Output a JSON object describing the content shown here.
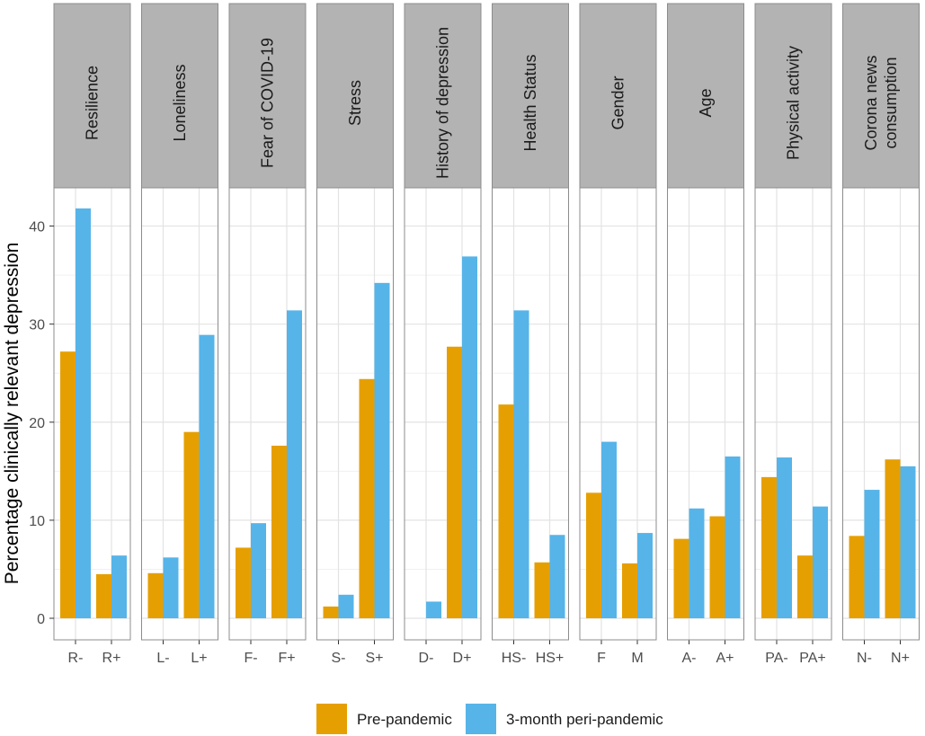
{
  "chart_data": {
    "type": "bar",
    "title": "",
    "xlabel": "",
    "ylabel": "Percentage clinically relevant depression",
    "ylim": [
      -2.2,
      43.9
    ],
    "yticks": [
      "0",
      "10",
      "20",
      "30",
      "40"
    ],
    "ytick_values": [
      0,
      10,
      20,
      30,
      40
    ],
    "grid": true,
    "legend_position": "bottom",
    "series": [
      {
        "name": "Pre-pandemic",
        "color": "#E69F00"
      },
      {
        "name": "3-month peri-pandemic",
        "color": "#56B4E9"
      }
    ],
    "facets": [
      {
        "label": "Resilience",
        "categories": [
          "R-",
          "R+"
        ],
        "pre": [
          27.2,
          4.5
        ],
        "peri": [
          41.8,
          6.4
        ]
      },
      {
        "label": "Loneliness",
        "categories": [
          "L-",
          "L+"
        ],
        "pre": [
          4.6,
          19.0
        ],
        "peri": [
          6.2,
          28.9
        ]
      },
      {
        "label": "Fear of COVID-19",
        "categories": [
          "F-",
          "F+"
        ],
        "pre": [
          7.2,
          17.6
        ],
        "peri": [
          9.7,
          31.4
        ]
      },
      {
        "label": "Stress",
        "categories": [
          "S-",
          "S+"
        ],
        "pre": [
          1.2,
          24.4
        ],
        "peri": [
          2.4,
          34.2
        ]
      },
      {
        "label": "History of depression",
        "categories": [
          "D-",
          "D+"
        ],
        "pre": [
          0.0,
          27.7
        ],
        "peri": [
          1.7,
          36.9
        ]
      },
      {
        "label": "Health Status",
        "categories": [
          "HS-",
          "HS+"
        ],
        "pre": [
          21.8,
          5.7
        ],
        "peri": [
          31.4,
          8.5
        ]
      },
      {
        "label": "Gender",
        "categories": [
          "F",
          "M"
        ],
        "pre": [
          12.8,
          5.6
        ],
        "peri": [
          18.0,
          8.7
        ]
      },
      {
        "label": "Age",
        "categories": [
          "A-",
          "A+"
        ],
        "pre": [
          8.1,
          10.4
        ],
        "peri": [
          11.2,
          16.5
        ]
      },
      {
        "label": "Physical activity",
        "categories": [
          "PA-",
          "PA+"
        ],
        "pre": [
          14.4,
          6.4
        ],
        "peri": [
          16.4,
          11.4
        ]
      },
      {
        "label": "Corona news\nconsumption",
        "categories": [
          "N-",
          "N+"
        ],
        "pre": [
          8.4,
          16.2
        ],
        "peri": [
          13.1,
          15.5
        ]
      }
    ]
  }
}
